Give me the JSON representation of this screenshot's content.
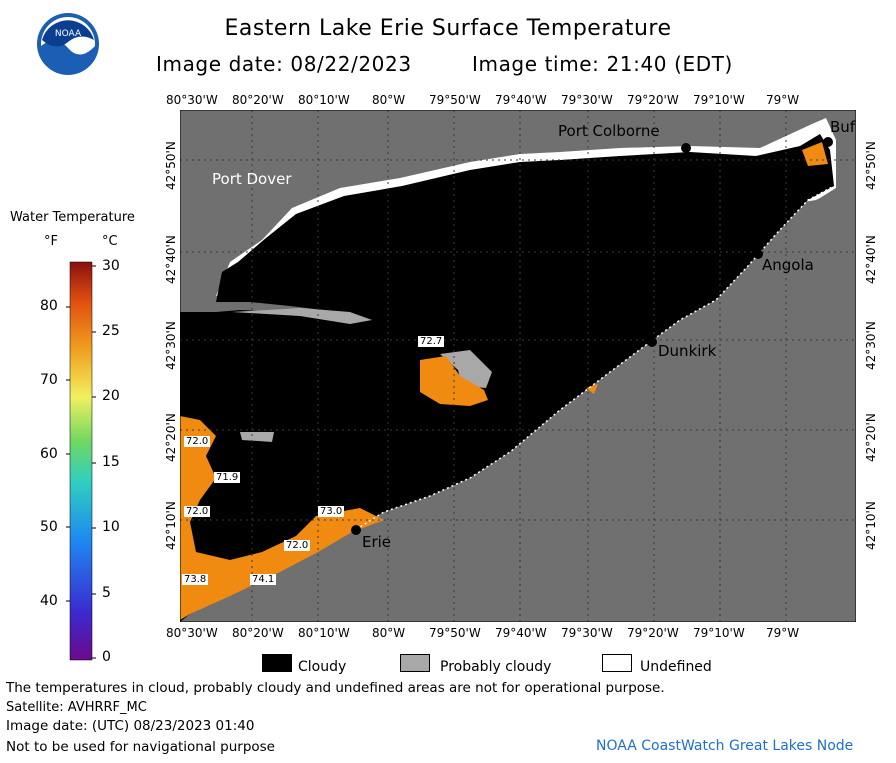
{
  "header": {
    "title": "Eastern Lake Erie Surface Temperature",
    "image_date": "Image date: 08/22/2023",
    "image_time": "Image time: 21:40 (EDT)"
  },
  "logo": {
    "text": "NOAA",
    "icon": "noaa-logo"
  },
  "legend": {
    "title": "Water Temperature",
    "unit_f": "°F",
    "unit_c": "°C",
    "f_ticks": [
      "80",
      "70",
      "60",
      "50",
      "40"
    ],
    "c_ticks": [
      "30",
      "25",
      "20",
      "15",
      "10",
      "5",
      "0"
    ]
  },
  "map": {
    "lon_labels": [
      "80°30'W",
      "80°20'W",
      "80°10'W",
      "80°W",
      "79°50'W",
      "79°40'W",
      "79°30'W",
      "79°20'W",
      "79°10'W",
      "79°W"
    ],
    "lat_labels": [
      "42°50'N",
      "42°40'N",
      "42°30'N",
      "42°20'N",
      "42°10'N"
    ],
    "places": {
      "port_colborne": "Port Colborne",
      "buffalo": "Buf",
      "port_dover": "Port Dover",
      "angola": "Angola",
      "dunkirk": "Dunkirk",
      "erie": "Erie"
    },
    "temp_labels": [
      "72.7",
      "72.0",
      "71.9",
      "72.0",
      "73.8",
      "74.1",
      "72.0",
      "73.0"
    ],
    "colors": {
      "land": "#707070",
      "cloudy": "#000000",
      "probably_cloudy": "#a8a8a8",
      "undefined": "#ffffff",
      "warm_water": "#f08a10"
    }
  },
  "key": {
    "cloudy": "Cloudy",
    "probably_cloudy": "Probably cloudy",
    "undefined": "Undefined"
  },
  "footer": {
    "note": "The temperatures in cloud, probably cloudy and undefined areas are not for operational purpose.",
    "satellite": "Satellite: AVHRRF_MC",
    "utc_date": "Image date: (UTC) 08/23/2023  01:40",
    "disclaimer": "Not to be used for navigational purpose",
    "credit": "NOAA CoastWatch Great Lakes Node"
  }
}
